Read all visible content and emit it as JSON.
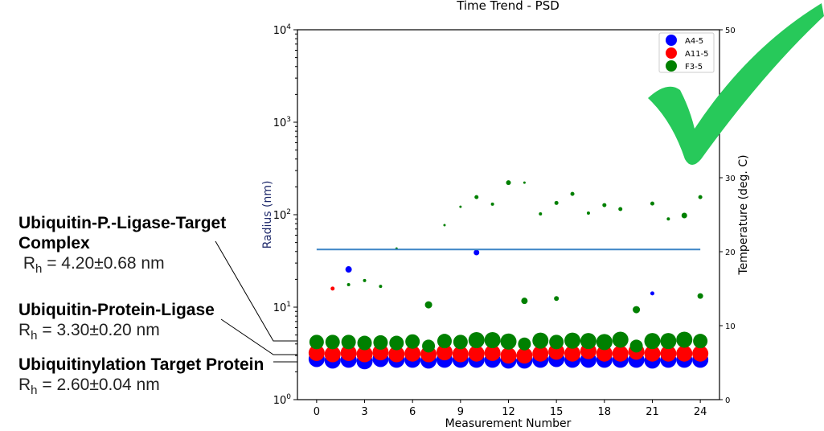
{
  "annotations": [
    {
      "title_line1": "Ubiquitin-P.-Ligase-Target",
      "title_line2": "Complex",
      "r_symbol": "R",
      "r_sub": "h",
      "r_value": " = 4.20±0.68 nm"
    },
    {
      "title_line1": "Ubiquitin-Protein-Ligase",
      "r_symbol": "R",
      "r_sub": "h",
      "r_value": " = 3.30±0.20 nm"
    },
    {
      "title_line1": "Ubiquitinylation Target Protein",
      "r_symbol": "R",
      "r_sub": "h",
      "r_value": " = 2.60±0.04 nm"
    }
  ],
  "checkmark_color": "#27c95a",
  "chart_data": {
    "type": "scatter",
    "title": "Time Trend - PSD",
    "xlabel": "Measurement Number",
    "ylabel": "Radius (nm)",
    "y2label": "Temperature (deg. C)",
    "xlim": [
      -1.2,
      25.2
    ],
    "ylim": [
      1,
      10000
    ],
    "yscale": "log",
    "y2lim": [
      0,
      50
    ],
    "xticks": [
      "0",
      "3",
      "6",
      "9",
      "12",
      "15",
      "18",
      "21",
      "24"
    ],
    "yticks": [
      {
        "base": "10",
        "exp": "0"
      },
      {
        "base": "10",
        "exp": "1"
      },
      {
        "base": "10",
        "exp": "2"
      },
      {
        "base": "10",
        "exp": "3"
      },
      {
        "base": "10",
        "exp": "4"
      }
    ],
    "y2ticks": [
      "0",
      "10",
      "20",
      "30",
      "40",
      "50"
    ],
    "legend": {
      "position": "top-right",
      "entries": [
        "A4-5",
        "A11-5",
        "F3-5"
      ]
    },
    "series": [
      {
        "name": "A4-5",
        "color": "#0000ff",
        "main_values": [
          2.75,
          2.65,
          2.7,
          2.6,
          2.75,
          2.7,
          2.7,
          2.65,
          2.7,
          2.7,
          2.7,
          2.7,
          2.65,
          2.65,
          2.7,
          2.75,
          2.7,
          2.7,
          2.7,
          2.7,
          2.7,
          2.65,
          2.7,
          2.7,
          2.7
        ],
        "outliers": [
          {
            "x": 2,
            "y": 25.6,
            "size": 4
          },
          {
            "x": 10,
            "y": 39,
            "size": 3.5
          },
          {
            "x": 21,
            "y": 14.1,
            "size": 2.5
          }
        ]
      },
      {
        "name": "A11-5",
        "color": "#ff0000",
        "main_values": [
          3.2,
          3.1,
          3.2,
          3.1,
          3.25,
          3.1,
          3.15,
          3.1,
          3.25,
          3.1,
          3.15,
          3.2,
          3.0,
          3.0,
          3.15,
          3.3,
          3.15,
          3.35,
          3.15,
          3.15,
          3.3,
          3.15,
          3.15,
          3.15,
          3.15
        ],
        "outliers": [
          {
            "x": 1,
            "y": 15.9,
            "size": 2.5
          }
        ]
      },
      {
        "name": "F3-5",
        "color": "#008000",
        "main_values": [
          4.2,
          4.2,
          4.2,
          4.1,
          4.15,
          4.1,
          4.25,
          3.8,
          4.3,
          4.2,
          4.4,
          4.4,
          4.25,
          4.0,
          4.35,
          4.2,
          4.35,
          4.3,
          4.2,
          4.45,
          3.8,
          4.3,
          4.3,
          4.45,
          4.3
        ],
        "main_sizes": [
          9,
          9,
          9,
          9,
          9,
          9,
          9,
          8,
          9,
          9,
          10,
          10,
          10,
          8,
          10,
          9,
          10,
          10,
          10,
          10,
          8,
          10,
          10,
          10,
          9
        ],
        "outliers": [
          {
            "x": 2,
            "y": 17.5,
            "size": 2
          },
          {
            "x": 3,
            "y": 19.4,
            "size": 2
          },
          {
            "x": 4,
            "y": 16.8,
            "size": 2
          },
          {
            "x": 5,
            "y": 43,
            "size": 1.5
          },
          {
            "x": 7,
            "y": 10.6,
            "size": 4.5
          },
          {
            "x": 8,
            "y": 77,
            "size": 1.5
          },
          {
            "x": 9,
            "y": 122,
            "size": 1.5
          },
          {
            "x": 10,
            "y": 155,
            "size": 2.5
          },
          {
            "x": 11,
            "y": 130,
            "size": 2
          },
          {
            "x": 12,
            "y": 222,
            "size": 3
          },
          {
            "x": 13,
            "y": 222,
            "size": 1.5
          },
          {
            "x": 13,
            "y": 11.7,
            "size": 4
          },
          {
            "x": 14,
            "y": 102,
            "size": 2
          },
          {
            "x": 15,
            "y": 134,
            "size": 2.5
          },
          {
            "x": 15,
            "y": 12.4,
            "size": 3
          },
          {
            "x": 16,
            "y": 168,
            "size": 2.5
          },
          {
            "x": 17,
            "y": 104,
            "size": 2
          },
          {
            "x": 18,
            "y": 127,
            "size": 2.5
          },
          {
            "x": 19,
            "y": 115,
            "size": 2.5
          },
          {
            "x": 20,
            "y": 9.4,
            "size": 4.5
          },
          {
            "x": 21,
            "y": 132,
            "size": 2.5
          },
          {
            "x": 22,
            "y": 90,
            "size": 2
          },
          {
            "x": 23,
            "y": 98,
            "size": 3.5
          },
          {
            "x": 24,
            "y": 155,
            "size": 2.5
          },
          {
            "x": 24,
            "y": 13.2,
            "size": 3.5
          }
        ]
      }
    ],
    "temperature_line": {
      "color": "#3d85c6",
      "x": [
        0,
        24
      ],
      "y": [
        20.3,
        20.3
      ]
    }
  }
}
